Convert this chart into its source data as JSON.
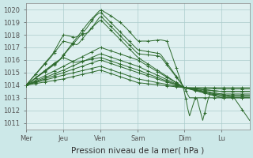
{
  "background_color": "#cce8e8",
  "plot_bg_color": "#dff0f0",
  "grid_color": "#aacccc",
  "line_color": "#2d6a2d",
  "ylim": [
    1010.5,
    1020.5
  ],
  "yticks": [
    1011,
    1012,
    1013,
    1014,
    1015,
    1016,
    1017,
    1018,
    1019,
    1020
  ],
  "xlabel": "Pression niveau de la mer( hPa )",
  "xlabel_fontsize": 7.5,
  "tick_fontsize": 6.0,
  "day_labels": [
    "Mer",
    "Jeu",
    "Ven",
    "Sam",
    "Dim",
    "Lu"
  ],
  "day_positions": [
    0,
    0.167,
    0.333,
    0.5,
    0.708,
    0.875
  ],
  "total_points": 120
}
